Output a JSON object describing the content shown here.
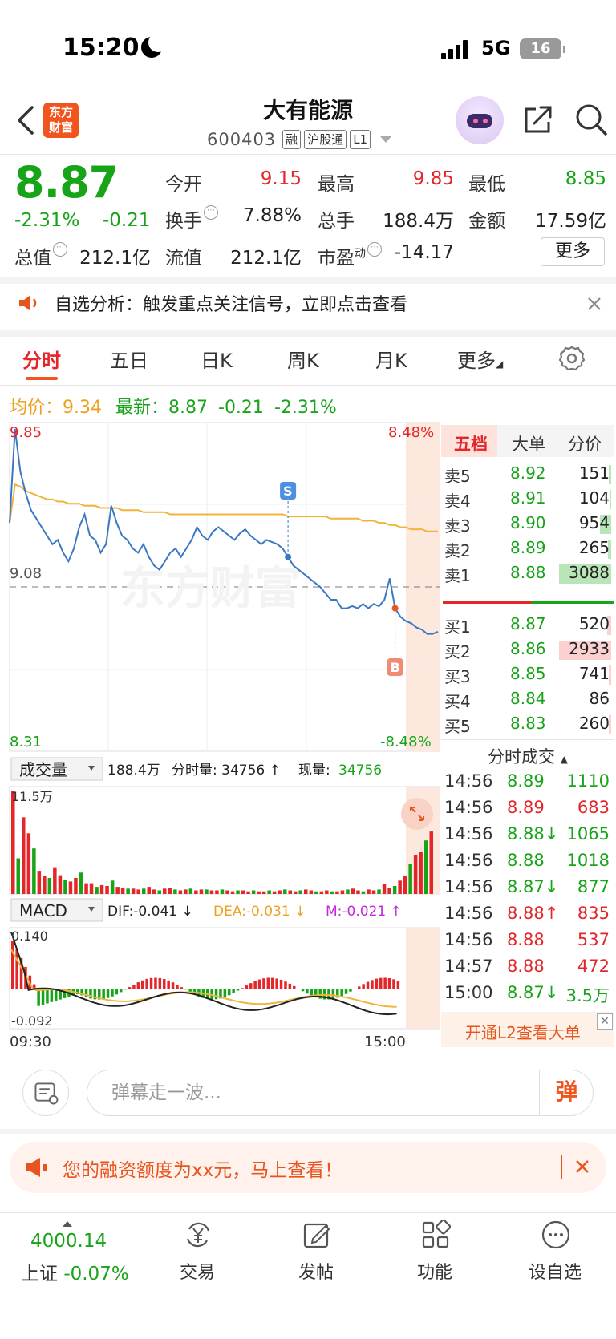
{
  "status_bar": {
    "time": "15:20",
    "network": "5G",
    "battery": "16"
  },
  "header": {
    "logo_line1": "东方",
    "logo_line2": "财富",
    "stock_name": "大有能源",
    "stock_code": "600403",
    "tags": [
      "融",
      "沪股通",
      "L1"
    ]
  },
  "quote": {
    "price": "8.87",
    "change_pct": "-2.31%",
    "change_abs": "-0.21",
    "rows": [
      [
        {
          "label": "今开",
          "value": "9.15",
          "color": "red"
        },
        {
          "label": "最高",
          "value": "9.85",
          "color": "red"
        },
        {
          "label": "最低",
          "value": "8.85",
          "color": "green"
        }
      ],
      [
        {
          "label": "换手",
          "value": "7.88%",
          "color": "black",
          "info": true
        },
        {
          "label": "总手",
          "value": "188.4万",
          "color": "black"
        },
        {
          "label": "金额",
          "value": "17.59亿",
          "color": "black"
        }
      ],
      [
        {
          "label": "总值",
          "value": "212.1亿",
          "color": "black",
          "info": true
        },
        {
          "label": "流值",
          "value": "212.1亿",
          "color": "black"
        },
        {
          "label": "市盈",
          "sup": "动",
          "value": "-14.17",
          "color": "black",
          "info": true
        }
      ]
    ],
    "more_label": "更多"
  },
  "notice": {
    "text": "自选分析：触发重点关注信号，立即点击查看"
  },
  "tabs": [
    "分时",
    "五日",
    "日K",
    "周K",
    "月K",
    "更多"
  ],
  "avg_line": {
    "avg_label": "均价：",
    "avg_value": "9.34",
    "latest_label": "最新：",
    "latest_value": "8.87",
    "chg_abs": "-0.21",
    "chg_pct": "-2.31%"
  },
  "chart_data": [
    {
      "type": "line",
      "title": "分时",
      "y_top_label": "9.85",
      "y_mid_label": "9.08",
      "y_bottom_label": "8.31",
      "pct_top_label": "8.48%",
      "pct_bottom_label": "-8.48%",
      "ylim": [
        8.31,
        9.85
      ],
      "reference": 9.08,
      "watermark": "东方财富",
      "markers": [
        {
          "label": "S",
          "index": 52
        },
        {
          "label": "B",
          "index": 72
        }
      ],
      "series": [
        {
          "name": "price",
          "values": [
            9.38,
            9.82,
            9.62,
            9.52,
            9.44,
            9.4,
            9.36,
            9.32,
            9.28,
            9.3,
            9.24,
            9.2,
            9.26,
            9.36,
            9.42,
            9.32,
            9.3,
            9.24,
            9.28,
            9.46,
            9.38,
            9.32,
            9.3,
            9.26,
            9.24,
            9.28,
            9.22,
            9.18,
            9.16,
            9.2,
            9.24,
            9.26,
            9.22,
            9.26,
            9.3,
            9.36,
            9.32,
            9.3,
            9.34,
            9.36,
            9.34,
            9.32,
            9.3,
            9.33,
            9.35,
            9.32,
            9.3,
            9.28,
            9.3,
            9.29,
            9.28,
            9.26,
            9.22,
            9.18,
            9.16,
            9.14,
            9.12,
            9.1,
            9.08,
            9.05,
            9.02,
            9.02,
            8.98,
            8.98,
            8.99,
            8.98,
            9.0,
            8.98,
            9.0,
            8.99,
            9.02,
            9.12,
            8.98,
            8.94,
            8.92,
            8.91,
            8.89,
            8.88,
            8.86,
            8.86,
            8.87
          ]
        },
        {
          "name": "avg",
          "values": [
            9.38,
            9.56,
            9.55,
            9.53,
            9.52,
            9.51,
            9.5,
            9.49,
            9.49,
            9.48,
            9.48,
            9.47,
            9.47,
            9.47,
            9.46,
            9.46,
            9.46,
            9.45,
            9.45,
            9.45,
            9.45,
            9.44,
            9.44,
            9.44,
            9.44,
            9.43,
            9.43,
            9.43,
            9.43,
            9.43,
            9.42,
            9.42,
            9.42,
            9.42,
            9.42,
            9.42,
            9.42,
            9.42,
            9.42,
            9.42,
            9.42,
            9.42,
            9.42,
            9.42,
            9.42,
            9.42,
            9.42,
            9.42,
            9.42,
            9.42,
            9.42,
            9.42,
            9.41,
            9.41,
            9.41,
            9.41,
            9.41,
            9.41,
            9.41,
            9.41,
            9.4,
            9.4,
            9.4,
            9.4,
            9.4,
            9.4,
            9.39,
            9.39,
            9.39,
            9.38,
            9.38,
            9.37,
            9.37,
            9.36,
            9.36,
            9.35,
            9.35,
            9.35,
            9.34,
            9.34,
            9.34
          ]
        }
      ]
    },
    {
      "type": "bar",
      "title": "成交量",
      "summary_total": "188.4万",
      "summary_label": "分时量:",
      "summary_value": "34756",
      "now_label": "现量:",
      "now_value": "34756",
      "y_top_label": "11.5万",
      "ylim": [
        0,
        11.5
      ],
      "values": [
        11.5,
        4.0,
        8.6,
        6.8,
        5.1,
        2.6,
        2.0,
        1.8,
        3.0,
        2.1,
        1.6,
        1.4,
        1.8,
        2.4,
        1.2,
        1.2,
        0.8,
        1.0,
        0.9,
        1.5,
        0.8,
        0.7,
        0.6,
        0.6,
        0.5,
        0.6,
        0.8,
        0.5,
        0.4,
        0.6,
        0.7,
        0.5,
        0.4,
        0.5,
        0.6,
        0.4,
        0.5,
        0.5,
        0.4,
        0.4,
        0.5,
        0.4,
        0.3,
        0.4,
        0.4,
        0.3,
        0.4,
        0.3,
        0.3,
        0.4,
        0.3,
        0.4,
        0.5,
        0.4,
        0.3,
        0.4,
        0.5,
        0.4,
        0.3,
        0.3,
        0.4,
        0.3,
        0.3,
        0.4,
        0.5,
        0.6,
        0.4,
        0.3,
        0.5,
        0.4,
        0.5,
        1.1,
        0.7,
        0.9,
        1.5,
        2.0,
        3.4,
        4.4,
        4.7,
        6.0,
        7.0
      ]
    },
    {
      "type": "bar",
      "title": "MACD",
      "dif_label": "DIF:-0.041",
      "dea_label": "DEA:-0.031",
      "m_label": "M:-0.021",
      "y_top_label": "0.140",
      "y_bottom_label": "-0.092",
      "ylim": [
        -0.092,
        0.14
      ],
      "x_labels": [
        "09:30",
        "15:00"
      ]
    }
  ],
  "depth": {
    "tabs": [
      "五档",
      "大单",
      "分价"
    ],
    "sell": [
      {
        "label": "卖5",
        "price": "8.92",
        "vol": "151",
        "bar": 0.04
      },
      {
        "label": "卖4",
        "price": "8.91",
        "vol": "104",
        "bar": 0.03
      },
      {
        "label": "卖3",
        "price": "8.90",
        "vol": "954",
        "bar": 0.2
      },
      {
        "label": "卖2",
        "price": "8.89",
        "vol": "265",
        "bar": 0.06
      },
      {
        "label": "卖1",
        "price": "8.88",
        "vol": "3088",
        "bar": 0.96
      }
    ],
    "buy": [
      {
        "label": "买1",
        "price": "8.87",
        "vol": "520",
        "bar": 0.08
      },
      {
        "label": "买2",
        "price": "8.86",
        "vol": "2933",
        "bar": 0.95
      },
      {
        "label": "买3",
        "price": "8.85",
        "vol": "741",
        "bar": 0.05
      },
      {
        "label": "买4",
        "price": "8.84",
        "vol": "86",
        "bar": 0.0
      },
      {
        "label": "买5",
        "price": "8.83",
        "vol": "260",
        "bar": 0.04
      }
    ],
    "trades_title": "分时成交",
    "trades": [
      {
        "time": "14:56",
        "price": "8.89",
        "vol": "1110",
        "dir": "",
        "color": "green"
      },
      {
        "time": "14:56",
        "price": "8.89",
        "vol": "683",
        "dir": "",
        "color": "red"
      },
      {
        "time": "14:56",
        "price": "8.88↓",
        "vol": "1065",
        "dir": "",
        "color": "green"
      },
      {
        "time": "14:56",
        "price": "8.88",
        "vol": "1018",
        "dir": "",
        "color": "green"
      },
      {
        "time": "14:56",
        "price": "8.87↓",
        "vol": "877",
        "dir": "",
        "color": "green"
      },
      {
        "time": "14:56",
        "price": "8.88↑",
        "vol": "835",
        "dir": "",
        "color": "red"
      },
      {
        "time": "14:56",
        "price": "8.88",
        "vol": "537",
        "dir": "",
        "color": "red"
      },
      {
        "time": "14:57",
        "price": "8.88",
        "vol": "472",
        "dir": "",
        "color": "red"
      },
      {
        "time": "15:00",
        "price": "8.87↓",
        "vol": "3.5万",
        "dir": "",
        "color": "green"
      }
    ],
    "l2_label": "开通L2查看大单"
  },
  "danmu": {
    "placeholder": "弹幕走一波...",
    "send_label": "弹"
  },
  "promo": {
    "text": "您的融资额度为xx元，马上查看！"
  },
  "bottom_nav": {
    "index_value": "4000.14",
    "index_name": "上证",
    "index_change": "-0.07%",
    "items": [
      "交易",
      "发帖",
      "功能",
      "设自选"
    ]
  },
  "colors": {
    "up": "#e3262a",
    "down": "#18a418",
    "avg": "#f0b43c",
    "price": "#3a78c4",
    "accent": "#f0551e"
  }
}
